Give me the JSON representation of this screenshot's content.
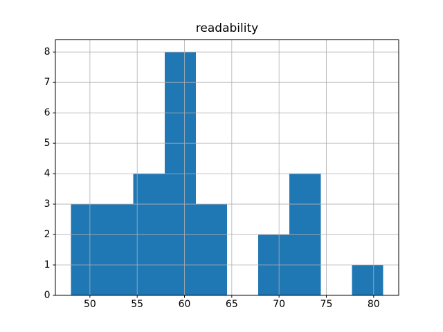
{
  "figure": {
    "background": "#ffffff"
  },
  "chart_data": {
    "type": "histogram",
    "title": "readability",
    "xlabel": "",
    "ylabel": "",
    "bin_edges": [
      48.0,
      51.3,
      54.6,
      57.9,
      61.2,
      64.5,
      67.8,
      71.1,
      74.4,
      77.7,
      81.0
    ],
    "counts": [
      3,
      3,
      4,
      8,
      3,
      0,
      2,
      4,
      0,
      1
    ],
    "xticks": [
      50,
      55,
      60,
      65,
      70,
      75,
      80
    ],
    "yticks": [
      0,
      1,
      2,
      3,
      4,
      5,
      6,
      7,
      8
    ],
    "xtick_labels": [
      "50",
      "55",
      "60",
      "65",
      "70",
      "75",
      "80"
    ],
    "ytick_labels": [
      "0",
      "1",
      "2",
      "3",
      "4",
      "5",
      "6",
      "7",
      "8"
    ],
    "xlim": [
      46.35,
      82.65
    ],
    "ylim": [
      0,
      8.4
    ],
    "grid": true,
    "grid_over_bars": true,
    "legend": null,
    "bar_color": "#1f77b4",
    "grid_color": "#b0b0b0",
    "spine_color": "#000000",
    "tick_color": "#000000",
    "text_color": "#000000"
  }
}
